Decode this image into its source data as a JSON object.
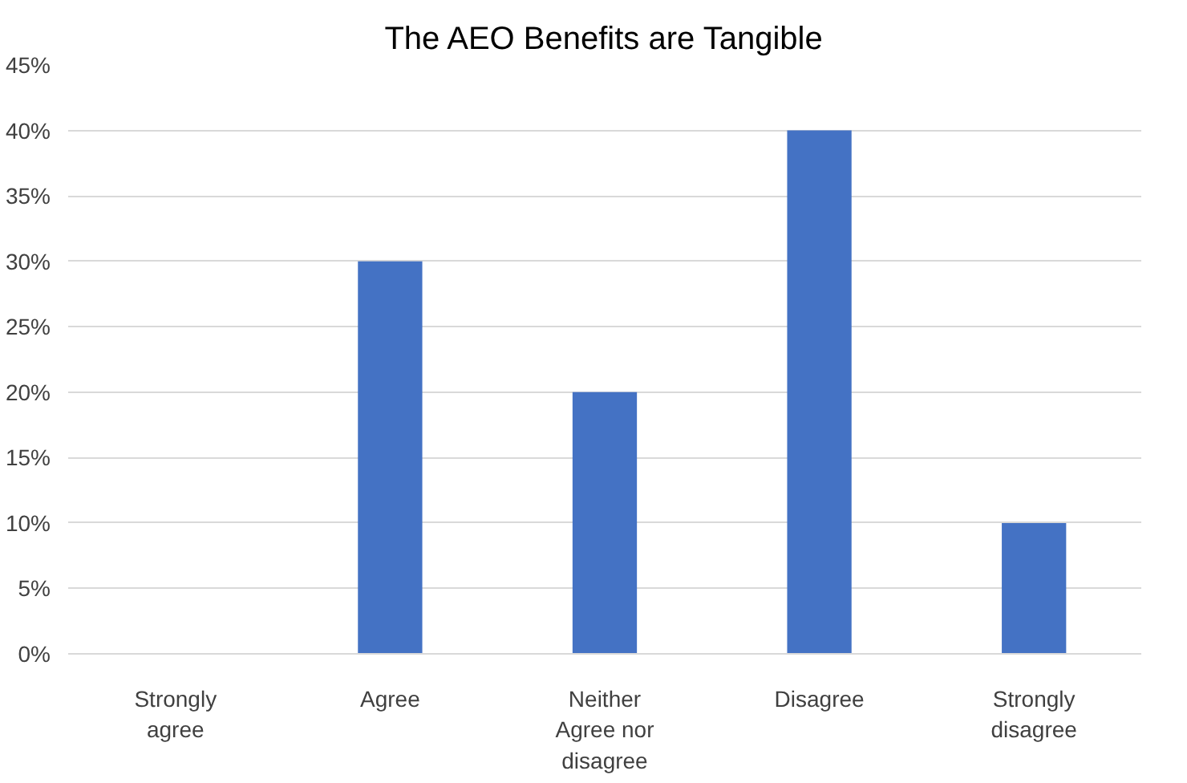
{
  "chart_data": {
    "type": "bar",
    "title": "The AEO Benefits are Tangible",
    "categories": [
      "Strongly agree",
      "Agree",
      "Neither Agree nor disagree",
      "Disagree",
      "Strongly disagree"
    ],
    "values": [
      0,
      30,
      20,
      40,
      10
    ],
    "color": "#4472c4",
    "ylim": [
      0,
      45
    ],
    "yticks": [
      {
        "value": 0,
        "label": "0%"
      },
      {
        "value": 5,
        "label": "5%"
      },
      {
        "value": 10,
        "label": "10%"
      },
      {
        "value": 15,
        "label": "15%"
      },
      {
        "value": 20,
        "label": "20%"
      },
      {
        "value": 25,
        "label": "25%"
      },
      {
        "value": 30,
        "label": "30%"
      },
      {
        "value": 35,
        "label": "35%"
      },
      {
        "value": 40,
        "label": "40%"
      },
      {
        "value": 45,
        "label": "45%"
      }
    ],
    "grid": "y"
  }
}
